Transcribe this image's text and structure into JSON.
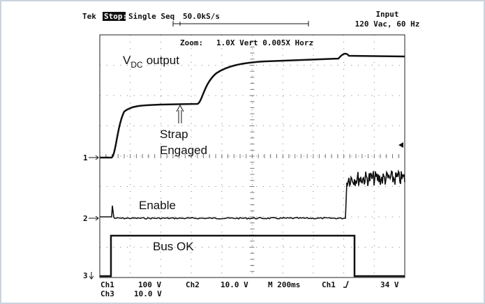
{
  "header": {
    "brand": "Tek",
    "status": "Stop:",
    "mode": "Single Seq",
    "rate": "50.0kS/s",
    "input_title": "Input",
    "input_value": "120 Vac, 60 Hz"
  },
  "zoom": {
    "label": "Zoom:",
    "value": "1.0X Vert 0.005X Horz"
  },
  "labels": {
    "vdc_main": "V",
    "vdc_sub": "DC",
    "vdc_rest": "output",
    "strap": "Strap",
    "engaged": "Engaged",
    "enable": "Enable",
    "bus_ok": "Bus OK"
  },
  "markers": [
    "1",
    "2",
    "3"
  ],
  "footer": {
    "row1": [
      "Ch1",
      "100 V",
      "Ch2",
      "10.0 V",
      "M 200ms",
      "Ch1",
      "34 V"
    ],
    "row2": [
      "Ch3",
      "10.0 V"
    ]
  }
}
